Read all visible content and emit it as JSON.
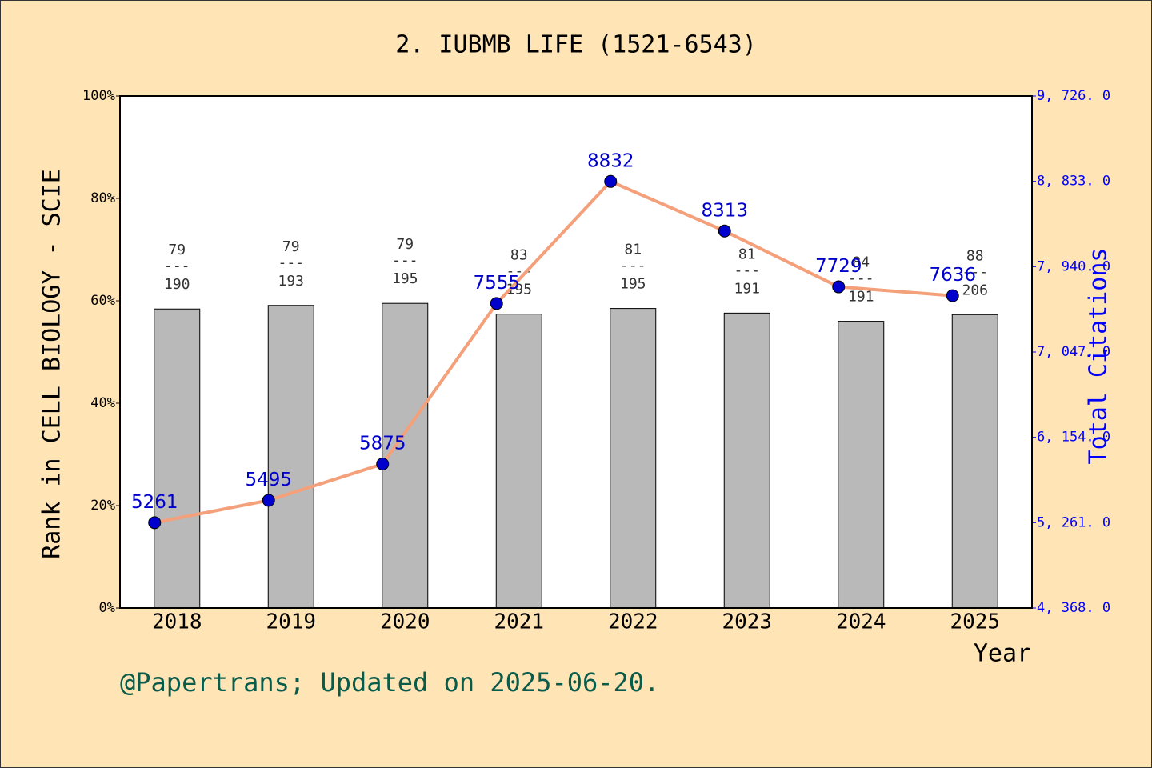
{
  "chart_data": {
    "type": "bar",
    "title": "2. IUBMB LIFE (1521-6543)",
    "x_label": "Year",
    "y_label": "Rank in CELL BIOLOGY - SCIE",
    "y2_label": "Total Citations",
    "footer": "@Papertrans; Updated on 2025-06-20.",
    "categories": [
      "2018",
      "2019",
      "2020",
      "2021",
      "2022",
      "2023",
      "2024",
      "2025"
    ],
    "series": [
      {
        "type": "bar",
        "color": "#b9b9b9",
        "values": [
          58.4,
          59.1,
          59.5,
          57.4,
          58.5,
          57.6,
          56.0,
          57.3
        ],
        "ranks": [
          79,
          79,
          79,
          83,
          81,
          81,
          84,
          88
        ],
        "separator": "---",
        "totals": [
          190,
          193,
          195,
          195,
          195,
          191,
          191,
          206
        ]
      },
      {
        "type": "line",
        "axis": "y2",
        "color": "#f4a07a",
        "marker_color": "#0000cc",
        "label_color": "#0000cc",
        "values": [
          5261,
          5495,
          5875,
          7555,
          8832,
          8313,
          7729,
          7636
        ]
      }
    ],
    "ylim": [
      0,
      100
    ],
    "yticks": [
      {
        "value": 0,
        "label": "0%"
      },
      {
        "value": 20,
        "label": "20%"
      },
      {
        "value": 40,
        "label": "40%"
      },
      {
        "value": 60,
        "label": "60%"
      },
      {
        "value": 80,
        "label": "80%"
      },
      {
        "value": 100,
        "label": "100%"
      }
    ],
    "y2lim": [
      4368,
      9726
    ],
    "y2ticks": [
      {
        "value": 4368,
        "label": "4, 368. 0"
      },
      {
        "value": 5261,
        "label": "5, 261. 0"
      },
      {
        "value": 6154,
        "label": "6, 154. 0"
      },
      {
        "value": 7047,
        "label": "7, 047. 0"
      },
      {
        "value": 7940,
        "label": "7, 940. 0"
      },
      {
        "value": 8833,
        "label": "8, 833. 0"
      },
      {
        "value": 9726,
        "label": "9, 726. 0"
      }
    ]
  }
}
